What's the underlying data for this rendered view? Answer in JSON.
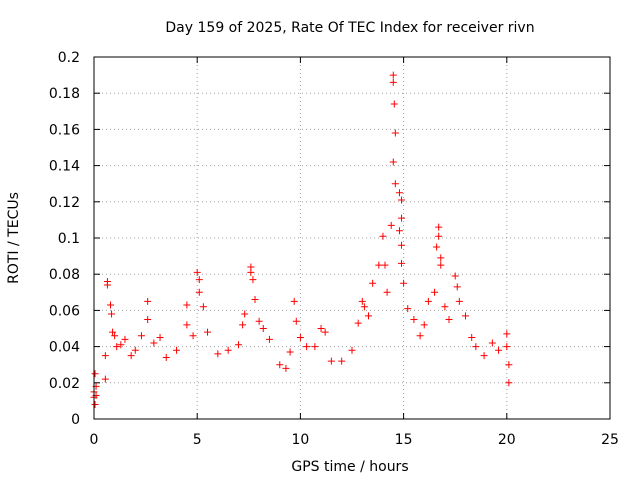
{
  "chart_data": {
    "type": "scatter",
    "title": "Day 159 of 2025, Rate Of TEC Index for receiver rivn",
    "xlabel": "GPS time / hours",
    "ylabel": "ROTI / TECUs",
    "xlim": [
      0,
      25
    ],
    "ylim": [
      0,
      0.2
    ],
    "x_ticks": [
      "0",
      "5",
      "10",
      "15",
      "20",
      "25"
    ],
    "y_ticks": [
      "0",
      "0.02",
      "0.04",
      "0.06",
      "0.08",
      "0.1",
      "0.12",
      "0.14",
      "0.16",
      "0.18",
      "0.2"
    ],
    "grid": true,
    "marker": "+",
    "marker_color": "#ff0000",
    "series": [
      {
        "points": [
          [
            0.0,
            0.012
          ],
          [
            0.0,
            0.015
          ],
          [
            0.05,
            0.025
          ],
          [
            0.05,
            0.008
          ],
          [
            0.1,
            0.013
          ],
          [
            0.1,
            0.018
          ],
          [
            0.55,
            0.035
          ],
          [
            0.55,
            0.022
          ],
          [
            0.65,
            0.076
          ],
          [
            0.65,
            0.074
          ],
          [
            0.8,
            0.063
          ],
          [
            0.85,
            0.058
          ],
          [
            0.9,
            0.048
          ],
          [
            1.0,
            0.046
          ],
          [
            1.1,
            0.04
          ],
          [
            1.3,
            0.041
          ],
          [
            1.5,
            0.044
          ],
          [
            1.8,
            0.035
          ],
          [
            2.0,
            0.038
          ],
          [
            2.3,
            0.046
          ],
          [
            2.6,
            0.065
          ],
          [
            2.6,
            0.055
          ],
          [
            2.9,
            0.042
          ],
          [
            3.2,
            0.045
          ],
          [
            3.5,
            0.034
          ],
          [
            4.0,
            0.038
          ],
          [
            4.5,
            0.063
          ],
          [
            4.5,
            0.052
          ],
          [
            4.8,
            0.046
          ],
          [
            5.0,
            0.081
          ],
          [
            5.1,
            0.077
          ],
          [
            5.1,
            0.07
          ],
          [
            5.3,
            0.062
          ],
          [
            5.5,
            0.048
          ],
          [
            6.0,
            0.036
          ],
          [
            6.5,
            0.038
          ],
          [
            7.0,
            0.041
          ],
          [
            7.2,
            0.052
          ],
          [
            7.3,
            0.058
          ],
          [
            7.6,
            0.084
          ],
          [
            7.6,
            0.081
          ],
          [
            7.7,
            0.077
          ],
          [
            7.8,
            0.066
          ],
          [
            8.0,
            0.054
          ],
          [
            8.2,
            0.05
          ],
          [
            8.5,
            0.044
          ],
          [
            9.0,
            0.03
          ],
          [
            9.3,
            0.028
          ],
          [
            9.5,
            0.037
          ],
          [
            9.7,
            0.065
          ],
          [
            9.8,
            0.054
          ],
          [
            10.0,
            0.045
          ],
          [
            10.3,
            0.04
          ],
          [
            10.7,
            0.04
          ],
          [
            11.0,
            0.05
          ],
          [
            11.2,
            0.048
          ],
          [
            11.5,
            0.032
          ],
          [
            12.0,
            0.032
          ],
          [
            12.5,
            0.038
          ],
          [
            12.8,
            0.053
          ],
          [
            13.0,
            0.065
          ],
          [
            13.1,
            0.062
          ],
          [
            13.3,
            0.057
          ],
          [
            13.5,
            0.075
          ],
          [
            13.8,
            0.085
          ],
          [
            14.0,
            0.101
          ],
          [
            14.1,
            0.085
          ],
          [
            14.2,
            0.07
          ],
          [
            14.4,
            0.107
          ],
          [
            14.5,
            0.19
          ],
          [
            14.5,
            0.186
          ],
          [
            14.55,
            0.174
          ],
          [
            14.6,
            0.158
          ],
          [
            14.5,
            0.142
          ],
          [
            14.6,
            0.13
          ],
          [
            14.8,
            0.125
          ],
          [
            14.9,
            0.121
          ],
          [
            14.9,
            0.111
          ],
          [
            14.8,
            0.104
          ],
          [
            14.9,
            0.096
          ],
          [
            14.9,
            0.086
          ],
          [
            15.0,
            0.075
          ],
          [
            15.2,
            0.061
          ],
          [
            15.5,
            0.055
          ],
          [
            15.8,
            0.046
          ],
          [
            16.0,
            0.052
          ],
          [
            16.2,
            0.065
          ],
          [
            16.5,
            0.07
          ],
          [
            16.7,
            0.106
          ],
          [
            16.7,
            0.101
          ],
          [
            16.6,
            0.095
          ],
          [
            16.8,
            0.089
          ],
          [
            16.8,
            0.085
          ],
          [
            17.0,
            0.062
          ],
          [
            17.2,
            0.055
          ],
          [
            17.5,
            0.079
          ],
          [
            17.6,
            0.073
          ],
          [
            17.7,
            0.065
          ],
          [
            18.0,
            0.057
          ],
          [
            18.3,
            0.045
          ],
          [
            18.5,
            0.04
          ],
          [
            18.9,
            0.035
          ],
          [
            19.3,
            0.042
          ],
          [
            19.6,
            0.038
          ],
          [
            20.0,
            0.047
          ],
          [
            20.0,
            0.04
          ],
          [
            20.1,
            0.03
          ],
          [
            20.1,
            0.02
          ]
        ]
      }
    ]
  }
}
